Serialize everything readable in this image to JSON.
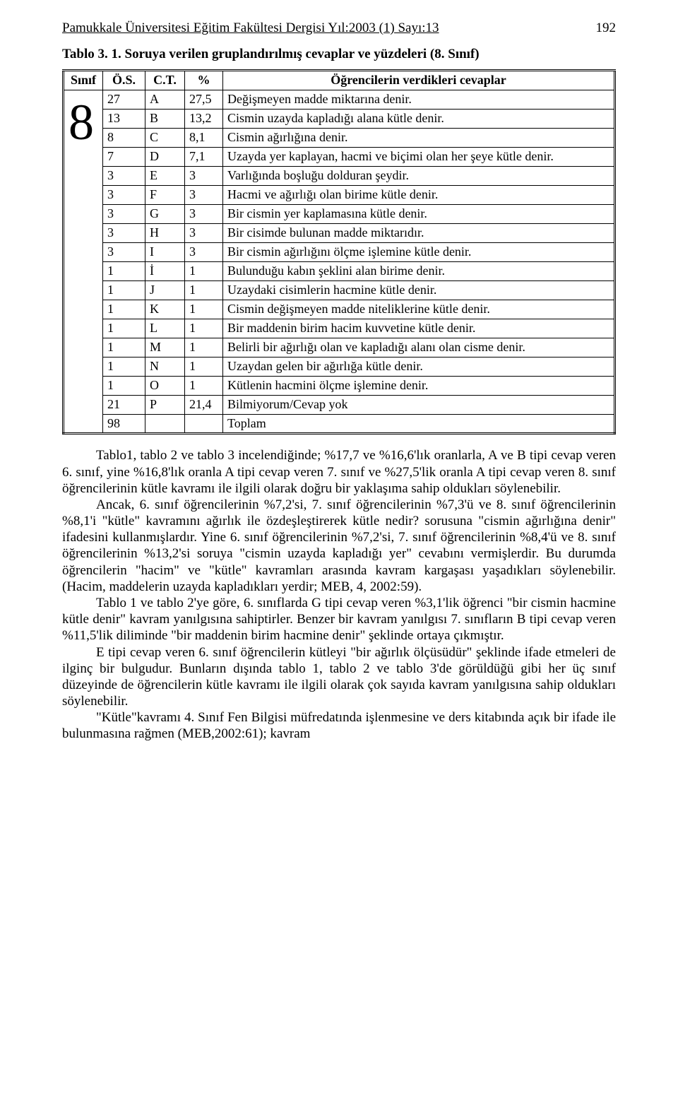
{
  "header": {
    "journal": "Pamukkale Üniversitesi Eğitim Fakültesi Dergisi Yıl:2003 (1) Sayı:13",
    "page_number": "192"
  },
  "table": {
    "caption": "Tablo 3. 1. Soruya verilen gruplandırılmış cevaplar ve yüzdeleri (8. Sınıf)",
    "columns": {
      "sinif": "Sınıf",
      "os": "Ö.S.",
      "ct": "C.T.",
      "pct": "%",
      "desc": "Öğrencilerin verdikleri cevaplar"
    },
    "class_label": "8",
    "rows": [
      {
        "os": "27",
        "ct": "A",
        "pct": "27,5",
        "desc": "Değişmeyen madde miktarına denir."
      },
      {
        "os": "13",
        "ct": "B",
        "pct": "13,2",
        "desc": "Cismin uzayda kapladığı alana kütle denir."
      },
      {
        "os": "8",
        "ct": "C",
        "pct": "8,1",
        "desc": "Cismin ağırlığına denir."
      },
      {
        "os": "7",
        "ct": "D",
        "pct": "7,1",
        "desc": "Uzayda yer kaplayan, hacmi ve biçimi olan her şeye kütle denir."
      },
      {
        "os": "3",
        "ct": "E",
        "pct": "3",
        "desc": "Varlığında boşluğu dolduran şeydir."
      },
      {
        "os": "3",
        "ct": "F",
        "pct": "3",
        "desc": "Hacmi ve ağırlığı olan birime kütle denir."
      },
      {
        "os": "3",
        "ct": "G",
        "pct": "3",
        "desc": "Bir cismin yer kaplamasına kütle denir."
      },
      {
        "os": "3",
        "ct": "H",
        "pct": "3",
        "desc": "Bir cisimde bulunan madde miktarıdır."
      },
      {
        "os": "3",
        "ct": "I",
        "pct": "3",
        "desc": "Bir cismin ağırlığını ölçme işlemine kütle denir."
      },
      {
        "os": "1",
        "ct": "İ",
        "pct": "1",
        "desc": "Bulunduğu kabın şeklini alan birime denir."
      },
      {
        "os": "1",
        "ct": "J",
        "pct": "1",
        "desc": "Uzaydaki cisimlerin hacmine kütle denir."
      },
      {
        "os": "1",
        "ct": "K",
        "pct": "1",
        "desc": "Cismin değişmeyen madde niteliklerine kütle denir."
      },
      {
        "os": "1",
        "ct": "L",
        "pct": "1",
        "desc": "Bir maddenin birim hacim kuvvetine kütle denir."
      },
      {
        "os": "1",
        "ct": "M",
        "pct": "1",
        "desc": "Belirli bir ağırlığı olan ve kapladığı alanı olan cisme denir."
      },
      {
        "os": "1",
        "ct": "N",
        "pct": "1",
        "desc": "Uzaydan gelen bir ağırlığa kütle denir."
      },
      {
        "os": "1",
        "ct": "O",
        "pct": "1",
        "desc": "Kütlenin hacmini ölçme işlemine denir."
      },
      {
        "os": "21",
        "ct": "P",
        "pct": "21,4",
        "desc": "Bilmiyorum/Cevap yok"
      }
    ],
    "total": {
      "os": "98",
      "desc": "Toplam"
    }
  },
  "paragraphs": [
    "Tablo1, tablo 2 ve tablo 3 incelendiğinde; %17,7 ve %16,6'lık oranlarla, A ve B tipi cevap veren 6. sınıf, yine %16,8'lık oranla A tipi cevap veren 7. sınıf ve %27,5'lik oranla A tipi cevap veren 8. sınıf  öğrencilerinin kütle kavramı ile ilgili olarak doğru bir yaklaşıma sahip oldukları söylenebilir.",
    "Ancak, 6. sınıf öğrencilerinin %7,2'si, 7. sınıf öğrencilerinin %7,3'ü ve 8. sınıf öğrencilerinin %8,1'i \"kütle\" kavramını ağırlık ile özdeşleştirerek kütle nedir? sorusuna \"cismin ağırlığına denir\" ifadesini kullanmışlardır. Yine 6. sınıf öğrencilerinin %7,2'si, 7. sınıf öğrencilerinin %8,4'ü ve 8. sınıf öğrencilerinin %13,2'si soruya \"cismin uzayda kapladığı yer\" cevabını vermişlerdir. Bu durumda öğrencilerin \"hacim\" ve \"kütle\" kavramları arasında kavram kargaşası yaşadıkları söylenebilir. (Hacim, maddelerin uzayda kapladıkları yerdir; MEB, 4, 2002:59).",
    "Tablo 1 ve tablo 2'ye göre, 6. sınıflarda G tipi cevap veren %3,1'lik öğrenci \"bir cismin hacmine kütle denir\" kavram yanılgısına sahiptirler. Benzer bir kavram yanılgısı 7. sınıfların  B tipi cevap veren %11,5'lik diliminde \"bir maddenin birim hacmine denir\" şeklinde ortaya çıkmıştır.",
    "E tipi cevap veren 6. sınıf öğrencilerin kütleyi \"bir ağırlık ölçüsüdür\" şeklinde ifade etmeleri de ilginç bir bulgudur. Bunların dışında tablo 1, tablo 2 ve tablo 3'de görüldüğü gibi her üç sınıf düzeyinde de öğrencilerin kütle kavramı ile ilgili olarak çok sayıda kavram yanılgısına sahip oldukları söylenebilir.",
    "\"Kütle\"kavramı 4. Sınıf Fen Bilgisi müfredatında işlenmesine ve ders kitabında açık bir ifade ile bulunmasına rağmen (MEB,2002:61); kavram"
  ]
}
